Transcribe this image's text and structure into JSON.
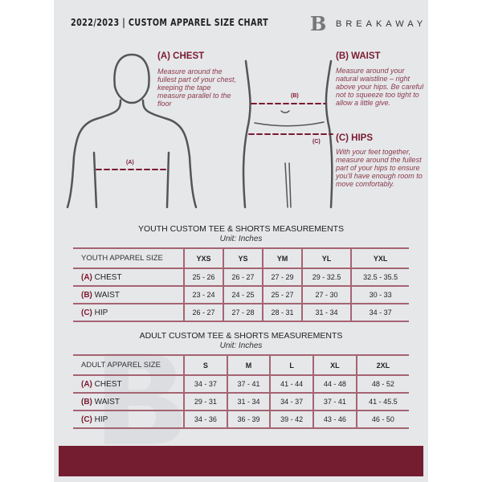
{
  "header": {
    "title": "2022/2023 | CUSTOM APPAREL SIZE CHART",
    "brand": "BREAKAWAY",
    "logo_letter": "B"
  },
  "measures": {
    "chest": {
      "title": "(A) CHEST",
      "desc": "Measure around the fullest part of your chest, keeping the tape measure parallel to the floor",
      "marker": "(A)"
    },
    "waist": {
      "title": "(B) WAIST",
      "desc": "Measure around your natural waistline – right above your hips. Be careful not to squeeze too tight to allow a little give.",
      "marker": "(B)"
    },
    "hips": {
      "title": "(C) HIPS",
      "desc": "With your feet together, measure around the fullest part of your hips to ensure you'll have enough room to move comfortably.",
      "marker": "(C)"
    }
  },
  "youth": {
    "title": "YOUTH CUSTOM TEE & SHORTS MEASUREMENTS",
    "unit": "Unit: Inches",
    "header": [
      "YOUTH APPAREL SIZE",
      "YXS",
      "YS",
      "YM",
      "YL",
      "YXL"
    ],
    "rows": [
      {
        "key": "(A)",
        "label": "CHEST",
        "values": [
          "25 - 26",
          "26 - 27",
          "27 - 29",
          "29 - 32.5",
          "32.5 - 35.5"
        ]
      },
      {
        "key": "(B)",
        "label": "WAIST",
        "values": [
          "23 - 24",
          "24 - 25",
          "25 - 27",
          "27 - 30",
          "30 - 33"
        ]
      },
      {
        "key": "(C)",
        "label": "HIP",
        "values": [
          "26 - 27",
          "27 - 28",
          "28 - 31",
          "31 - 34",
          "34 - 37"
        ]
      }
    ]
  },
  "adult": {
    "title": "ADULT CUSTOM TEE & SHORTS MEASUREMENTS",
    "unit": "Unit: Inches",
    "header": [
      "ADULT APPAREL SIZE",
      "S",
      "M",
      "L",
      "XL",
      "2XL"
    ],
    "rows": [
      {
        "key": "(A)",
        "label": "CHEST",
        "values": [
          "34 - 37",
          "37 - 41",
          "41 - 44",
          "44 - 48",
          "48 - 52"
        ]
      },
      {
        "key": "(B)",
        "label": "WAIST",
        "values": [
          "29 - 31",
          "31 - 34",
          "34 - 37",
          "37 - 41",
          "41 - 45.5"
        ]
      },
      {
        "key": "(C)",
        "label": "HIP",
        "values": [
          "34 - 36",
          "36 - 39",
          "39 - 42",
          "43 - 46",
          "46 - 50"
        ]
      }
    ]
  },
  "colors": {
    "accent": "#741c30",
    "background": "#e6e7e9"
  }
}
